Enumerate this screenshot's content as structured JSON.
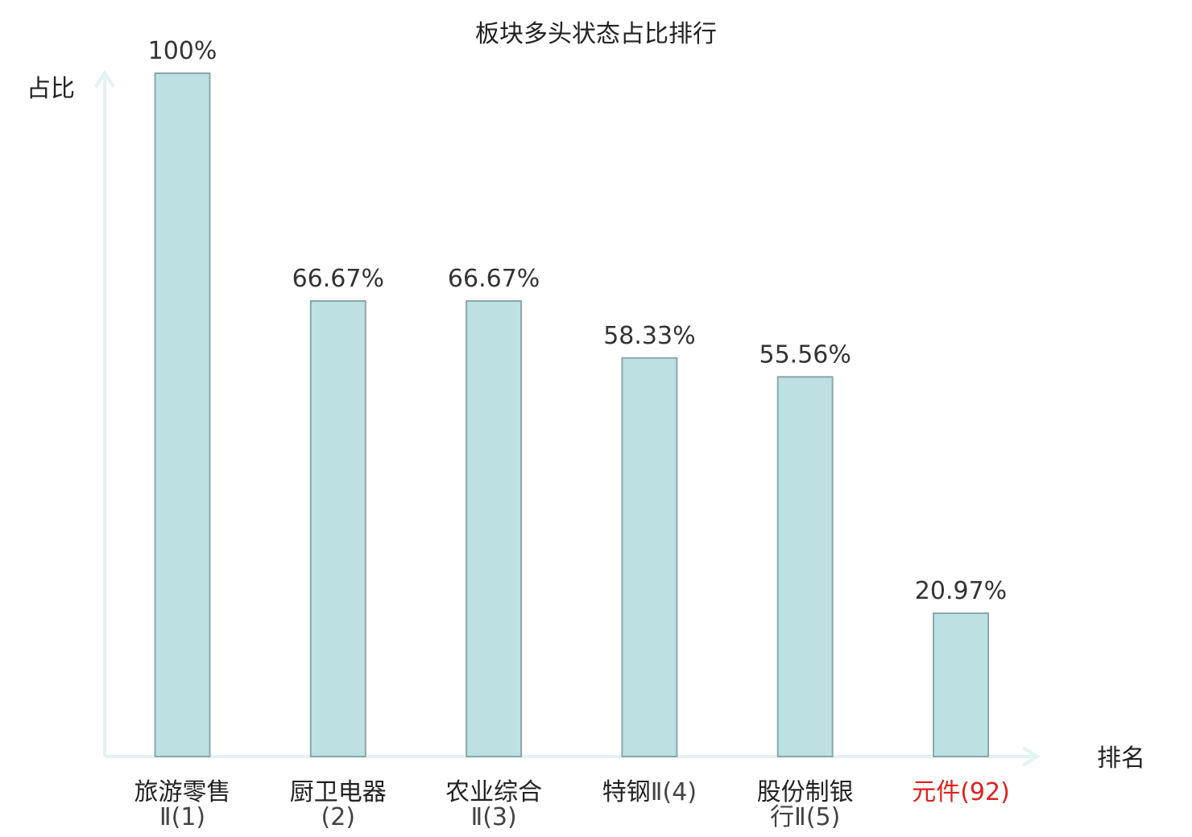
{
  "chart_data": {
    "type": "bar",
    "title": "板块多头状态占比排行",
    "ylabel": "占比",
    "xlabel": "排名",
    "ylim": [
      0,
      100
    ],
    "grid": false,
    "categories": [
      {
        "main": "旅游零售",
        "rank": "Ⅱ(1)",
        "highlight": false
      },
      {
        "main": "厨卫电器",
        "rank": "(2)",
        "highlight": false
      },
      {
        "main": "农业综合",
        "rank": "Ⅱ(3)",
        "highlight": false
      },
      {
        "main": "特钢",
        "rank": "Ⅱ(4)",
        "highlight": false
      },
      {
        "main": "股份制银",
        "rank": "行Ⅱ(5)",
        "highlight": false
      },
      {
        "main": "元件",
        "rank": "(92)",
        "highlight": true
      }
    ],
    "values": [
      100,
      66.67,
      66.67,
      58.33,
      55.56,
      20.97
    ],
    "value_labels": [
      "100%",
      "66.67%",
      "66.67%",
      "58.33%",
      "55.56%",
      "20.97%"
    ],
    "colors": {
      "bar_fill": "#bde0e2",
      "bar_stroke": "#8aa7aa",
      "axis": "#e3f3f1",
      "highlight": "#e0201c",
      "text": "#222222"
    }
  }
}
